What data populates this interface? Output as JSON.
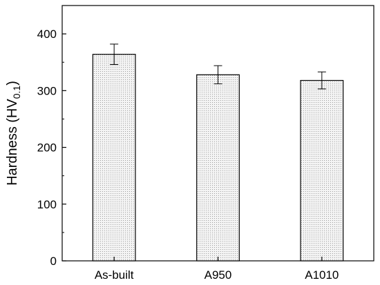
{
  "chart_data": {
    "type": "bar",
    "categories": [
      "As-built",
      "A950",
      "A1010"
    ],
    "values": [
      364,
      328,
      318
    ],
    "errors": [
      18,
      16,
      15
    ],
    "ylabel_main": "Hardness (HV",
    "ylabel_sub": "0.1",
    "ylabel_close": ")",
    "ylim": [
      0,
      450
    ],
    "yticks": [
      0,
      100,
      200,
      300,
      400
    ],
    "bar_fill": "#ececec",
    "bar_stroke": "#000000",
    "grid": false
  }
}
